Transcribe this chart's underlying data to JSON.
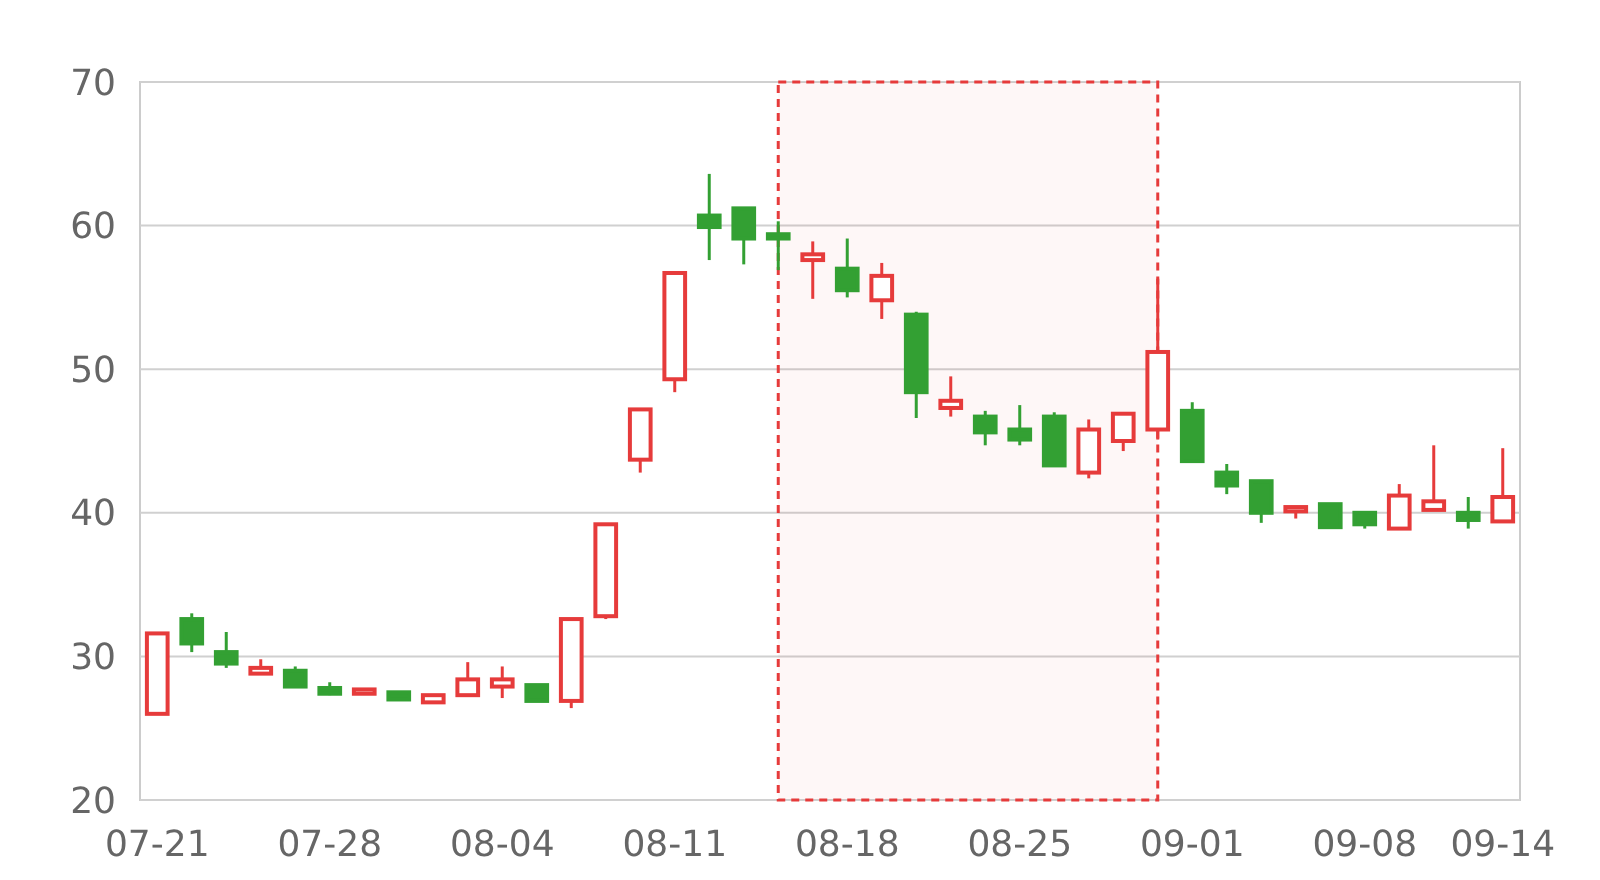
{
  "chart_data": {
    "type": "candlestick",
    "categories": [
      "07-21",
      null,
      null,
      null,
      null,
      "07-28",
      null,
      null,
      null,
      null,
      "08-04",
      null,
      null,
      null,
      null,
      "08-11",
      null,
      null,
      null,
      null,
      "08-18",
      null,
      null,
      null,
      null,
      "08-25",
      null,
      null,
      null,
      null,
      "09-01",
      null,
      null,
      null,
      null,
      "09-08",
      null,
      null,
      null,
      "09-14"
    ],
    "ohlc": [
      [
        26.0,
        31.6,
        26.0,
        31.6
      ],
      [
        32.6,
        33.0,
        30.3,
        30.9
      ],
      [
        30.3,
        31.7,
        29.2,
        29.5
      ],
      [
        28.8,
        29.8,
        28.8,
        29.2
      ],
      [
        29.0,
        29.3,
        27.9,
        27.9
      ],
      [
        27.8,
        28.2,
        27.3,
        27.4
      ],
      [
        27.4,
        27.7,
        27.4,
        27.7
      ],
      [
        27.5,
        27.5,
        27.0,
        27.0
      ],
      [
        26.8,
        27.3,
        26.8,
        27.3
      ],
      [
        27.3,
        29.6,
        27.3,
        28.4
      ],
      [
        27.9,
        29.3,
        27.1,
        28.4
      ],
      [
        28.0,
        28.0,
        26.9,
        26.9
      ],
      [
        26.9,
        32.6,
        26.4,
        32.6
      ],
      [
        32.8,
        39.2,
        32.6,
        39.2
      ],
      [
        43.7,
        47.2,
        42.8,
        47.2
      ],
      [
        49.3,
        56.7,
        48.4,
        56.7
      ],
      [
        60.7,
        63.6,
        57.6,
        59.9
      ],
      [
        61.2,
        61.2,
        57.3,
        59.1
      ],
      [
        59.4,
        60.3,
        56.9,
        59.1
      ],
      [
        57.6,
        58.9,
        54.9,
        58.0
      ],
      [
        57.0,
        59.1,
        55.0,
        55.5
      ],
      [
        54.8,
        57.4,
        53.5,
        56.5
      ],
      [
        53.8,
        54.0,
        46.6,
        48.4
      ],
      [
        47.3,
        49.5,
        46.7,
        47.8
      ],
      [
        46.7,
        47.1,
        44.7,
        45.6
      ],
      [
        45.8,
        47.5,
        44.7,
        45.1
      ],
      [
        46.7,
        47.0,
        43.3,
        43.3
      ],
      [
        42.8,
        46.5,
        42.4,
        45.8
      ],
      [
        45.0,
        46.9,
        44.3,
        46.9
      ],
      [
        45.8,
        56.3,
        45.1,
        51.2
      ],
      [
        47.1,
        47.7,
        43.6,
        43.6
      ],
      [
        42.8,
        43.4,
        41.3,
        41.9
      ],
      [
        42.2,
        42.2,
        39.3,
        40.0
      ],
      [
        40.1,
        40.4,
        39.6,
        40.4
      ],
      [
        40.6,
        40.6,
        39.0,
        39.0
      ],
      [
        40.0,
        40.0,
        38.9,
        39.2
      ],
      [
        38.9,
        42.0,
        38.9,
        41.2
      ],
      [
        40.2,
        44.7,
        40.2,
        40.8
      ],
      [
        40.0,
        41.1,
        38.9,
        39.5
      ],
      [
        39.4,
        44.5,
        39.4,
        41.1
      ]
    ],
    "colors": [
      "#e63b3b",
      "#33a033",
      "#33a033",
      "#e63b3b",
      "#33a033",
      "#33a033",
      "#e63b3b",
      "#33a033",
      "#e63b3b",
      "#e63b3b",
      "#e63b3b",
      "#33a033",
      "#e63b3b",
      "#e63b3b",
      "#e63b3b",
      "#e63b3b",
      "#33a033",
      "#33a033",
      "#33a033",
      "#e63b3b",
      "#33a033",
      "#e63b3b",
      "#33a033",
      "#e63b3b",
      "#33a033",
      "#33a033",
      "#33a033",
      "#e63b3b",
      "#e63b3b",
      "#e63b3b",
      "#33a033",
      "#33a033",
      "#33a033",
      "#e63b3b",
      "#33a033",
      "#33a033",
      "#e63b3b",
      "#e63b3b",
      "#33a033",
      "#e63b3b"
    ],
    "ylim": [
      20,
      70
    ],
    "yticks": [
      20,
      30,
      40,
      50,
      60,
      70
    ],
    "grid": "y"
  }
}
